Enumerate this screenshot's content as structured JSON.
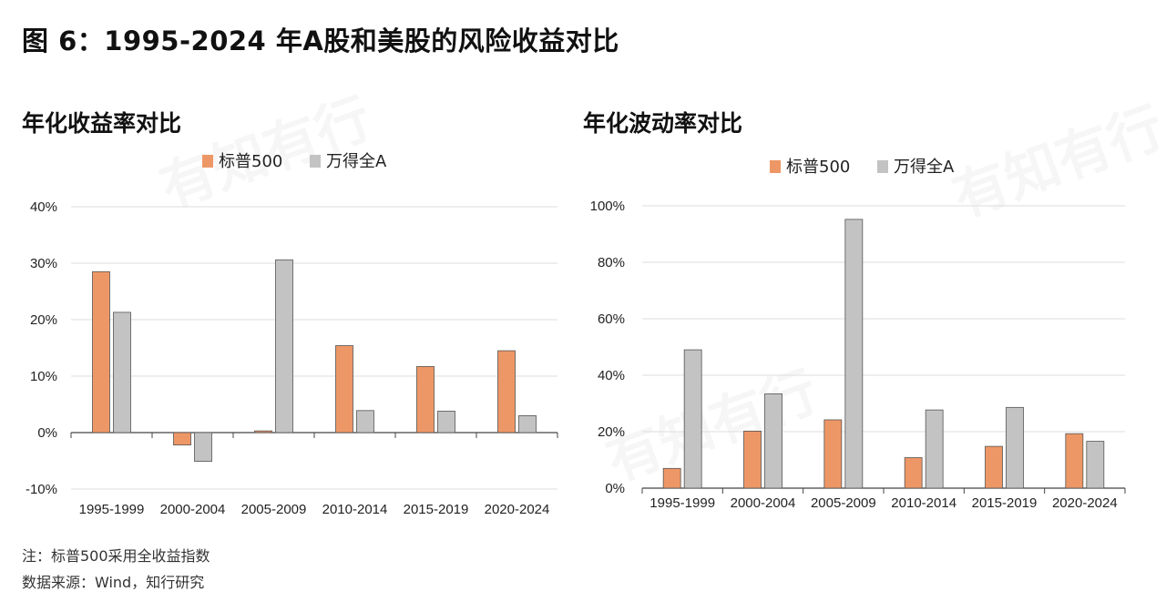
{
  "title": "图 6：1995-2024 年A股和美股的风险收益对比",
  "watermark_text": "有知有行",
  "colors": {
    "sp500": "#ee9766",
    "wind": "#c3c3c3",
    "bar_stroke": "#555555",
    "axis": "#444444",
    "grid": "#dddddd"
  },
  "legend": {
    "sp500": "标普500",
    "wind": "万得全A"
  },
  "chart_data": [
    {
      "type": "bar",
      "title": "年化收益率对比",
      "categories": [
        "1995-1999",
        "2000-2004",
        "2005-2009",
        "2010-2014",
        "2015-2019",
        "2020-2024"
      ],
      "series": [
        {
          "name": "标普500",
          "values": [
            28.5,
            -2.2,
            0.3,
            15.4,
            11.7,
            14.5
          ]
        },
        {
          "name": "万得全A",
          "values": [
            21.3,
            -5.1,
            30.6,
            3.9,
            3.8,
            3.0
          ]
        }
      ],
      "ylim": [
        -10,
        40
      ],
      "yticks": [
        -10,
        0,
        10,
        20,
        30,
        40
      ],
      "ytick_labels": [
        "-10%",
        "0%",
        "10%",
        "20%",
        "30%",
        "40%"
      ],
      "legend_position": "top-center",
      "grid": true
    },
    {
      "type": "bar",
      "title": "年化波动率对比",
      "categories": [
        "1995-1999",
        "2000-2004",
        "2005-2009",
        "2010-2014",
        "2015-2019",
        "2020-2024"
      ],
      "series": [
        {
          "name": "标普500",
          "values": [
            7.0,
            20.2,
            24.2,
            10.8,
            14.8,
            19.3
          ]
        },
        {
          "name": "万得全A",
          "values": [
            49.0,
            33.4,
            95.2,
            27.7,
            28.6,
            16.6
          ]
        }
      ],
      "ylim": [
        0,
        100
      ],
      "yticks": [
        0,
        20,
        40,
        60,
        80,
        100
      ],
      "ytick_labels": [
        "0%",
        "20%",
        "40%",
        "60%",
        "80%",
        "100%"
      ],
      "legend_position": "top-center",
      "grid": true
    }
  ],
  "notes": {
    "note1": "注：标普500采用全收益指数",
    "source": "数据来源：Wind，知行研究"
  }
}
